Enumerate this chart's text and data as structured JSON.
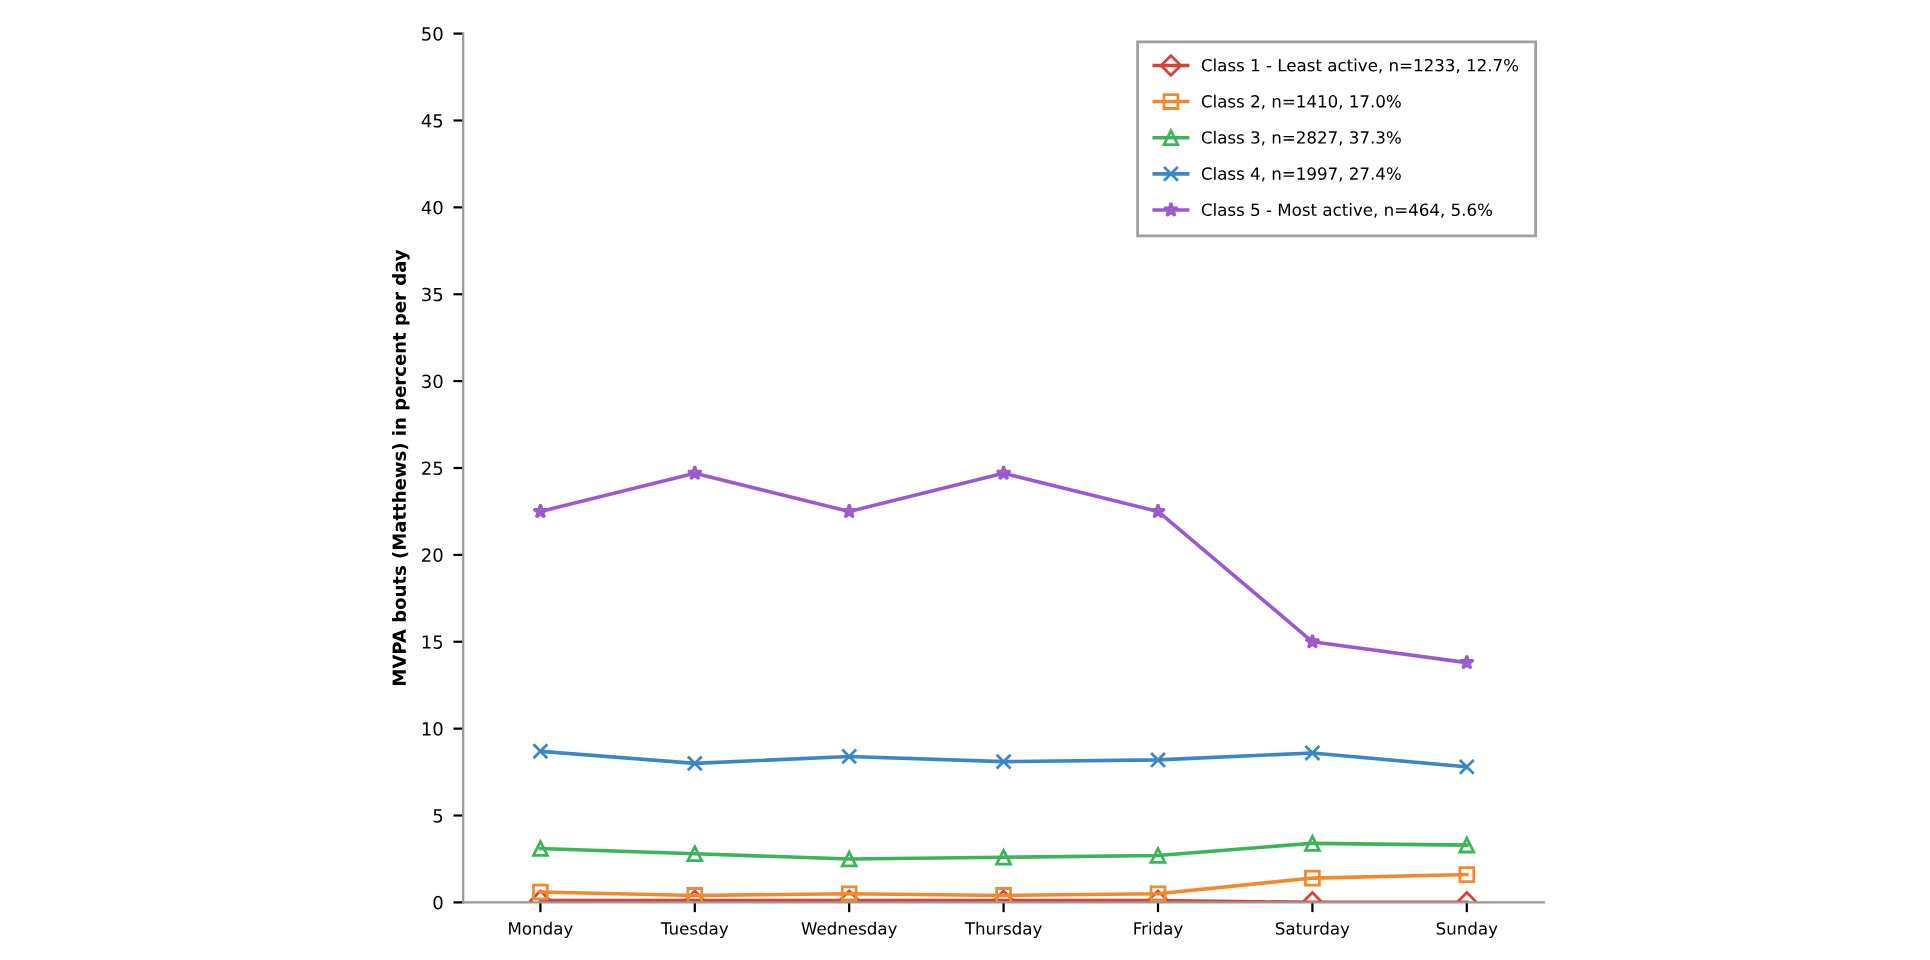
{
  "chart_data": {
    "type": "line",
    "ylabel": "MVPA bouts (Matthews) in percent per day",
    "categories": [
      "Monday",
      "Tuesday",
      "Wednesday",
      "Thursday",
      "Friday",
      "Saturday",
      "Sunday"
    ],
    "series": [
      {
        "name": "Class 1 - Least active, n=1233, 12.7%",
        "color": "#d9403a",
        "marker": "diamond",
        "values": [
          0.1,
          0.1,
          0.1,
          0.1,
          0.1,
          0,
          0
        ]
      },
      {
        "name": "Class 2, n=1410, 17.0%",
        "color": "#f08a2c",
        "marker": "square",
        "values": [
          0.6,
          0.4,
          0.5,
          0.4,
          0.5,
          1.4,
          1.6
        ]
      },
      {
        "name": "Class 3, n=2827, 37.3%",
        "color": "#3cb55a",
        "marker": "triangle",
        "values": [
          3.1,
          2.8,
          2.5,
          2.6,
          2.7,
          3.4,
          3.3
        ]
      },
      {
        "name": "Class 4, n=1997, 27.4%",
        "color": "#3a87c8",
        "marker": "cross",
        "values": [
          8.7,
          8.0,
          8.4,
          8.1,
          8.2,
          8.6,
          7.8
        ]
      },
      {
        "name": "Class 5 - Most active, n=464, 5.6%",
        "color": "#9b59d0",
        "marker": "star",
        "values": [
          22.5,
          24.7,
          22.5,
          24.7,
          22.5,
          15.0,
          13.8
        ]
      }
    ],
    "ylim": [
      0,
      50
    ],
    "yticks": [
      0,
      5,
      10,
      15,
      20,
      25,
      30,
      35,
      40,
      45,
      50
    ],
    "grid": false,
    "legend": "top right"
  }
}
